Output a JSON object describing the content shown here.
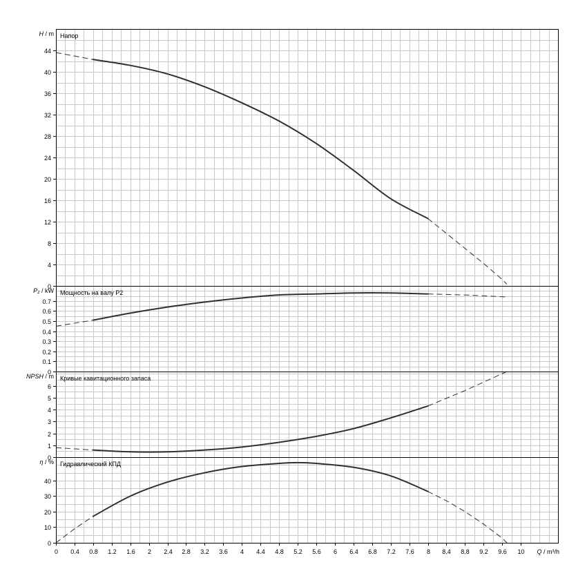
{
  "chart_data": {
    "type": "line",
    "x_axis": {
      "label": "Q / m³/h",
      "range": [
        0,
        10.8
      ],
      "ticks": [
        0,
        0.4,
        0.8,
        1.2,
        1.6,
        2,
        2.4,
        2.8,
        3.2,
        3.6,
        4,
        4.4,
        4.8,
        5.2,
        5.6,
        6,
        6.4,
        6.8,
        7.2,
        7.6,
        8,
        8.4,
        8.8,
        9.2,
        9.6,
        10
      ],
      "tick_labels": [
        "0",
        "0.4",
        "0.8",
        "1.2",
        "1.6",
        "2",
        "2.4",
        "2.8",
        "3.2",
        "3.6",
        "4",
        "4.4",
        "4.8",
        "5.2",
        "5.6",
        "6",
        "6.4",
        "6.8",
        "7.2",
        "7.6",
        "8",
        "8.4",
        "8.8",
        "9.2",
        "9.6",
        "10"
      ],
      "label_q": "Q",
      "label_unit": " / m³/h",
      "grid": true
    },
    "panels": [
      {
        "id": "head",
        "title": "Напор",
        "ylabel_symbol": "H",
        "ylabel_unit": " / m",
        "ylim": [
          0,
          48
        ],
        "yticks": [
          0,
          4,
          8,
          12,
          16,
          20,
          24,
          28,
          32,
          36,
          40,
          44
        ],
        "ytick_labels": [
          "0",
          "4",
          "8",
          "12",
          "16",
          "20",
          "24",
          "28",
          "32",
          "36",
          "40",
          "44"
        ],
        "ygrid_step": 2,
        "series": [
          {
            "style": "dashed",
            "x": [
              0,
              0.8
            ],
            "y": [
              43.6,
              42.3
            ]
          },
          {
            "style": "solid",
            "x": [
              0.8,
              1.6,
              2.4,
              3.2,
              4,
              4.8,
              5.6,
              6.4,
              7.2,
              8
            ],
            "y": [
              42.3,
              41.2,
              39.6,
              37.2,
              34.2,
              30.8,
              26.6,
              21.6,
              16.3,
              12.6
            ]
          },
          {
            "style": "dashed",
            "x": [
              8,
              8.4,
              8.8,
              9.2,
              9.6,
              9.7
            ],
            "y": [
              12.6,
              9.8,
              7.0,
              4.2,
              1.2,
              0.3
            ]
          }
        ]
      },
      {
        "id": "power",
        "title": "Мощность на валу P2",
        "ylabel_symbol": "P₂",
        "ylabel_unit": " / kW",
        "ylim": [
          0,
          0.85
        ],
        "yticks": [
          0,
          0.1,
          0.2,
          0.3,
          0.4,
          0.5,
          0.6,
          0.7
        ],
        "ytick_labels": [
          "0",
          "0.1",
          "0.2",
          "0.3",
          "0.4",
          "0.5",
          "0.6",
          "0.7"
        ],
        "ygrid_step": 0.05,
        "series": [
          {
            "style": "dashed",
            "x": [
              0,
              0.8
            ],
            "y": [
              0.45,
              0.51
            ]
          },
          {
            "style": "solid",
            "x": [
              0.8,
              1.6,
              2.4,
              3.2,
              4,
              4.8,
              5.6,
              6.4,
              7.2,
              8
            ],
            "y": [
              0.51,
              0.58,
              0.64,
              0.69,
              0.73,
              0.76,
              0.77,
              0.78,
              0.78,
              0.77
            ]
          },
          {
            "style": "dashed",
            "x": [
              8,
              8.8,
              9.7
            ],
            "y": [
              0.77,
              0.76,
              0.74
            ]
          }
        ]
      },
      {
        "id": "npsh",
        "title": "Кривые кавитационного запаса",
        "ylabel_symbol": "NPSH",
        "ylabel_unit": " / m",
        "ylim": [
          0,
          7.2
        ],
        "yticks": [
          0,
          1,
          2,
          3,
          4,
          5,
          6
        ],
        "ytick_labels": [
          "0",
          "1",
          "2",
          "3",
          "4",
          "5",
          "6"
        ],
        "ygrid_step": 0.5,
        "series": [
          {
            "style": "dashed",
            "x": [
              0,
              0.8
            ],
            "y": [
              0.8,
              0.6
            ]
          },
          {
            "style": "solid",
            "x": [
              0.8,
              1.6,
              2.4,
              3.2,
              4,
              4.8,
              5.6,
              6.4,
              7.2,
              8
            ],
            "y": [
              0.6,
              0.45,
              0.45,
              0.6,
              0.85,
              1.25,
              1.75,
              2.4,
              3.3,
              4.3
            ]
          },
          {
            "style": "dashed",
            "x": [
              8,
              8.8,
              9.7
            ],
            "y": [
              4.3,
              5.6,
              7.2
            ]
          }
        ]
      },
      {
        "id": "efficiency",
        "title": "Гидравлический КПД",
        "ylabel_symbol": "η",
        "ylabel_unit": " / %",
        "ylim": [
          0,
          55
        ],
        "yticks": [
          0,
          10,
          20,
          30,
          40
        ],
        "ytick_labels": [
          "0",
          "10",
          "20",
          "30",
          "40"
        ],
        "ygrid_step": 5,
        "series": [
          {
            "style": "dashed",
            "x": [
              0,
              0.4,
              0.8
            ],
            "y": [
              0,
              9,
              17
            ]
          },
          {
            "style": "solid",
            "x": [
              0.8,
              1.6,
              2.4,
              3.2,
              4,
              4.8,
              5.2,
              5.6,
              6.4,
              7.2,
              8
            ],
            "y": [
              17,
              30,
              39,
              45,
              49,
              51,
              51.5,
              51,
              48.5,
              43,
              33
            ]
          },
          {
            "style": "dashed",
            "x": [
              8,
              8.4,
              8.8,
              9.2,
              9.6,
              9.7
            ],
            "y": [
              33,
              27,
              20,
              12,
              3,
              0
            ]
          }
        ]
      }
    ]
  }
}
